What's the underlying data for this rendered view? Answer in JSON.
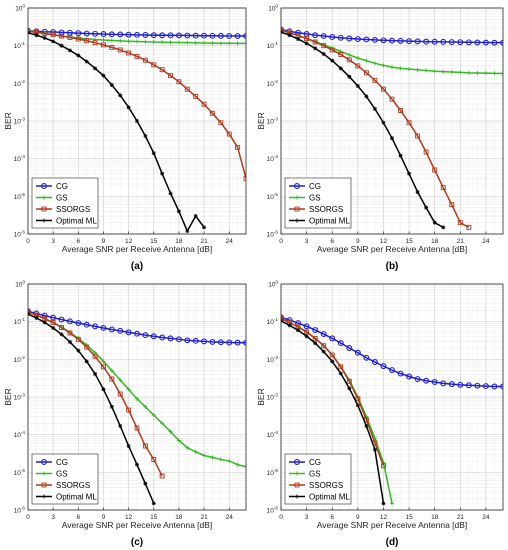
{
  "chart_data": [
    {
      "type": "line",
      "panel_label": "(a)",
      "xlabel": "Average SNR per Receive Antenna [dB]",
      "ylabel": "BER",
      "xlim": [
        0,
        26
      ],
      "ylim_log10": [
        -6,
        0
      ],
      "y_scale": "log",
      "x_ticks": [
        0,
        3,
        6,
        9,
        12,
        15,
        18,
        21,
        24
      ],
      "y_ticks": [
        "10^0",
        "10^-1",
        "10^-2",
        "10^-3",
        "10^-4",
        "10^-5",
        "10^-6"
      ],
      "grid": true,
      "legend_position": "bottom-left",
      "series": [
        {
          "name": "CG",
          "color": "#1f1fd6",
          "marker": "circle",
          "x": [
            0,
            1,
            2,
            3,
            4,
            5,
            6,
            7,
            8,
            9,
            10,
            11,
            12,
            13,
            14,
            15,
            16,
            17,
            18,
            19,
            20,
            21,
            22,
            23,
            24,
            25,
            26
          ],
          "y": [
            0.25,
            0.24,
            0.235,
            0.23,
            0.225,
            0.22,
            0.215,
            0.21,
            0.207,
            0.204,
            0.2,
            0.198,
            0.196,
            0.194,
            0.192,
            0.19,
            0.189,
            0.188,
            0.187,
            0.186,
            0.185,
            0.184,
            0.183,
            0.182,
            0.181,
            0.18,
            0.18
          ]
        },
        {
          "name": "GS",
          "color": "#33bb22",
          "marker": "plus",
          "x": [
            0,
            1,
            2,
            3,
            4,
            5,
            6,
            7,
            8,
            9,
            10,
            11,
            12,
            13,
            14,
            15,
            16,
            17,
            18,
            19,
            20,
            21,
            22,
            23,
            24,
            25,
            26
          ],
          "y": [
            0.25,
            0.23,
            0.21,
            0.195,
            0.18,
            0.17,
            0.16,
            0.152,
            0.146,
            0.141,
            0.137,
            0.134,
            0.131,
            0.129,
            0.127,
            0.125,
            0.124,
            0.122,
            0.121,
            0.12,
            0.119,
            0.118,
            0.117,
            0.116,
            0.116,
            0.115,
            0.115
          ]
        },
        {
          "name": "SSORGS",
          "color": "#b03a1e",
          "marker": "square",
          "x": [
            0,
            1,
            2,
            3,
            4,
            5,
            6,
            7,
            8,
            9,
            10,
            11,
            12,
            13,
            14,
            15,
            16,
            17,
            18,
            19,
            20,
            21,
            22,
            23,
            24,
            25,
            26
          ],
          "y": [
            0.24,
            0.225,
            0.21,
            0.195,
            0.18,
            0.165,
            0.15,
            0.135,
            0.12,
            0.105,
            0.09,
            0.077,
            0.064,
            0.052,
            0.041,
            0.031,
            0.023,
            0.016,
            0.011,
            0.007,
            0.0045,
            0.0028,
            0.0016,
            0.0009,
            0.00045,
            0.0002,
            3e-05
          ]
        },
        {
          "name": "Optimal ML",
          "color": "#000000",
          "marker": "asterisk",
          "x": [
            0,
            1,
            2,
            3,
            4,
            5,
            6,
            7,
            8,
            9,
            10,
            11,
            12,
            13,
            14,
            15,
            16,
            17,
            18,
            19,
            20,
            21
          ],
          "y": [
            0.22,
            0.19,
            0.16,
            0.13,
            0.1,
            0.075,
            0.055,
            0.038,
            0.025,
            0.016,
            0.009,
            0.0048,
            0.0023,
            0.001,
            0.0004,
            0.00014,
            4e-05,
            1.2e-05,
            4e-06,
            1.2e-06,
            3e-06,
            1.5e-06
          ]
        }
      ]
    },
    {
      "type": "line",
      "panel_label": "(b)",
      "xlabel": "Average SNR per Receive Antenna [dB]",
      "ylabel": "BER",
      "xlim": [
        0,
        26
      ],
      "ylim_log10": [
        -6,
        0
      ],
      "y_scale": "log",
      "x_ticks": [
        0,
        3,
        6,
        9,
        12,
        15,
        18,
        21,
        24
      ],
      "y_ticks": [
        "10^0",
        "10^-1",
        "10^-2",
        "10^-3",
        "10^-4",
        "10^-5",
        "10^-6"
      ],
      "grid": true,
      "legend_position": "bottom-left",
      "series": [
        {
          "name": "CG",
          "color": "#1f1fd6",
          "marker": "circle",
          "x": [
            0,
            1,
            2,
            3,
            4,
            5,
            6,
            7,
            8,
            9,
            10,
            11,
            12,
            13,
            14,
            15,
            16,
            17,
            18,
            19,
            20,
            21,
            22,
            23,
            24,
            25,
            26
          ],
          "y": [
            0.27,
            0.24,
            0.22,
            0.205,
            0.19,
            0.18,
            0.17,
            0.162,
            0.155,
            0.15,
            0.146,
            0.142,
            0.139,
            0.136,
            0.134,
            0.132,
            0.13,
            0.128,
            0.127,
            0.126,
            0.125,
            0.124,
            0.123,
            0.122,
            0.121,
            0.12,
            0.12
          ]
        },
        {
          "name": "GS",
          "color": "#33bb22",
          "marker": "plus",
          "x": [
            0,
            1,
            2,
            3,
            4,
            5,
            6,
            7,
            8,
            9,
            10,
            11,
            12,
            13,
            14,
            15,
            16,
            17,
            18,
            19,
            20,
            21,
            22,
            23,
            24,
            25,
            26
          ],
          "y": [
            0.26,
            0.22,
            0.185,
            0.155,
            0.128,
            0.105,
            0.086,
            0.07,
            0.057,
            0.047,
            0.04,
            0.034,
            0.03,
            0.027,
            0.025,
            0.024,
            0.023,
            0.022,
            0.021,
            0.0205,
            0.02,
            0.0195,
            0.019,
            0.0188,
            0.0186,
            0.0184,
            0.0182
          ]
        },
        {
          "name": "SSORGS",
          "color": "#b03a1e",
          "marker": "square",
          "x": [
            0,
            1,
            2,
            3,
            4,
            5,
            6,
            7,
            8,
            9,
            10,
            11,
            12,
            13,
            14,
            15,
            16,
            17,
            18,
            19,
            20,
            21,
            22
          ],
          "y": [
            0.26,
            0.22,
            0.185,
            0.155,
            0.125,
            0.1,
            0.077,
            0.058,
            0.042,
            0.029,
            0.019,
            0.012,
            0.007,
            0.0038,
            0.0019,
            0.0009,
            0.0004,
            0.00015,
            5e-05,
            1.7e-05,
            6e-06,
            2e-06,
            1.5e-06
          ]
        },
        {
          "name": "Optimal ML",
          "color": "#000000",
          "marker": "asterisk",
          "x": [
            0,
            1,
            2,
            3,
            4,
            5,
            6,
            7,
            8,
            9,
            10,
            11,
            12,
            13,
            14,
            15,
            16,
            17,
            18,
            19
          ],
          "y": [
            0.23,
            0.19,
            0.15,
            0.115,
            0.085,
            0.06,
            0.04,
            0.025,
            0.015,
            0.0085,
            0.0045,
            0.0021,
            0.0009,
            0.00035,
            0.00012,
            4e-05,
            1.3e-05,
            5e-06,
            2e-06,
            1.5e-06
          ]
        }
      ]
    },
    {
      "type": "line",
      "panel_label": "(c)",
      "xlabel": "Average SNR per Receive Antenna [dB]",
      "ylabel": "BER",
      "xlim": [
        0,
        26
      ],
      "ylim_log10": [
        -6,
        0
      ],
      "y_scale": "log",
      "x_ticks": [
        0,
        3,
        6,
        9,
        12,
        15,
        18,
        21,
        24
      ],
      "y_ticks": [
        "10^0",
        "10^-1",
        "10^-2",
        "10^-3",
        "10^-4",
        "10^-5",
        "10^-6"
      ],
      "grid": true,
      "legend_position": "bottom-left",
      "series": [
        {
          "name": "CG",
          "color": "#1f1fd6",
          "marker": "circle",
          "x": [
            0,
            1,
            2,
            3,
            4,
            5,
            6,
            7,
            8,
            9,
            10,
            11,
            12,
            13,
            14,
            15,
            16,
            17,
            18,
            19,
            20,
            21,
            22,
            23,
            24,
            25,
            26
          ],
          "y": [
            0.19,
            0.165,
            0.145,
            0.128,
            0.114,
            0.102,
            0.092,
            0.083,
            0.075,
            0.068,
            0.062,
            0.057,
            0.052,
            0.048,
            0.044,
            0.041,
            0.038,
            0.036,
            0.034,
            0.032,
            0.031,
            0.03,
            0.029,
            0.0285,
            0.028,
            0.0278,
            0.0276
          ]
        },
        {
          "name": "GS",
          "color": "#33bb22",
          "marker": "plus",
          "x": [
            0,
            1,
            2,
            3,
            4,
            5,
            6,
            7,
            8,
            9,
            10,
            11,
            12,
            13,
            14,
            15,
            16,
            17,
            18,
            19,
            20,
            21,
            22,
            23,
            24,
            25,
            26
          ],
          "y": [
            0.18,
            0.15,
            0.12,
            0.095,
            0.072,
            0.052,
            0.036,
            0.024,
            0.015,
            0.0088,
            0.005,
            0.0028,
            0.0016,
            0.0009,
            0.00055,
            0.00033,
            0.0002,
            0.00012,
            7e-05,
            4.5e-05,
            3.5e-05,
            2.8e-05,
            2.5e-05,
            2.2e-05,
            2e-05,
            1.6e-05,
            1.4e-05
          ]
        },
        {
          "name": "SSORGS",
          "color": "#b03a1e",
          "marker": "square",
          "x": [
            0,
            1,
            2,
            3,
            4,
            5,
            6,
            7,
            8,
            9,
            10,
            11,
            12,
            13,
            14,
            15,
            16
          ],
          "y": [
            0.18,
            0.15,
            0.12,
            0.095,
            0.07,
            0.05,
            0.034,
            0.021,
            0.012,
            0.0063,
            0.003,
            0.0012,
            0.00045,
            0.00015,
            5e-05,
            2.2e-05,
            8e-06
          ]
        },
        {
          "name": "Optimal ML",
          "color": "#000000",
          "marker": "asterisk",
          "x": [
            0,
            1,
            2,
            3,
            4,
            5,
            6,
            7,
            8,
            9,
            10,
            11,
            12,
            13,
            14,
            15
          ],
          "y": [
            0.16,
            0.125,
            0.095,
            0.068,
            0.046,
            0.029,
            0.017,
            0.0088,
            0.0041,
            0.0016,
            0.00055,
            0.00017,
            5e-05,
            1.6e-05,
            5e-06,
            1.5e-06
          ]
        }
      ]
    },
    {
      "type": "line",
      "panel_label": "(d)",
      "xlabel": "Average SNR per Receive Antenna [dB]",
      "ylabel": "BER",
      "xlim": [
        0,
        26
      ],
      "ylim_log10": [
        -6,
        0
      ],
      "y_scale": "log",
      "x_ticks": [
        0,
        3,
        6,
        9,
        12,
        15,
        18,
        21,
        24
      ],
      "y_ticks": [
        "10^0",
        "10^-1",
        "10^-2",
        "10^-3",
        "10^-4",
        "10^-5",
        "10^-6"
      ],
      "grid": true,
      "legend_position": "bottom-left",
      "series": [
        {
          "name": "CG",
          "color": "#1f1fd6",
          "marker": "circle",
          "x": [
            0,
            1,
            2,
            3,
            4,
            5,
            6,
            7,
            8,
            9,
            10,
            11,
            12,
            13,
            14,
            15,
            16,
            17,
            18,
            19,
            20,
            21,
            22,
            23,
            24,
            25,
            26
          ],
          "y": [
            0.13,
            0.11,
            0.092,
            0.075,
            0.06,
            0.047,
            0.036,
            0.027,
            0.02,
            0.015,
            0.011,
            0.0085,
            0.0066,
            0.0052,
            0.0042,
            0.0035,
            0.003,
            0.0027,
            0.0025,
            0.0023,
            0.0022,
            0.0021,
            0.00205,
            0.002,
            0.00195,
            0.0019,
            0.0019
          ]
        },
        {
          "name": "GS",
          "color": "#33bb22",
          "marker": "plus",
          "x": [
            0,
            1,
            2,
            3,
            4,
            5,
            6,
            7,
            8,
            9,
            10,
            11,
            12,
            13
          ],
          "y": [
            0.12,
            0.095,
            0.073,
            0.053,
            0.036,
            0.023,
            0.013,
            0.0065,
            0.0028,
            0.001,
            0.0003,
            8e-05,
            1.8e-05,
            1.5e-06
          ]
        },
        {
          "name": "SSORGS",
          "color": "#b03a1e",
          "marker": "square",
          "x": [
            0,
            1,
            2,
            3,
            4,
            5,
            6,
            7,
            8,
            9,
            10,
            11,
            12
          ],
          "y": [
            0.12,
            0.095,
            0.073,
            0.053,
            0.036,
            0.023,
            0.013,
            0.0063,
            0.0026,
            0.0009,
            0.00025,
            6e-05,
            1.5e-05
          ]
        },
        {
          "name": "Optimal ML",
          "color": "#000000",
          "marker": "asterisk",
          "x": [
            0,
            1,
            2,
            3,
            4,
            5,
            6,
            7,
            8,
            9,
            10,
            11,
            12
          ],
          "y": [
            0.105,
            0.08,
            0.059,
            0.041,
            0.027,
            0.016,
            0.0088,
            0.0042,
            0.0017,
            0.0006,
            0.00017,
            4e-05,
            1.5e-06
          ]
        }
      ]
    }
  ]
}
